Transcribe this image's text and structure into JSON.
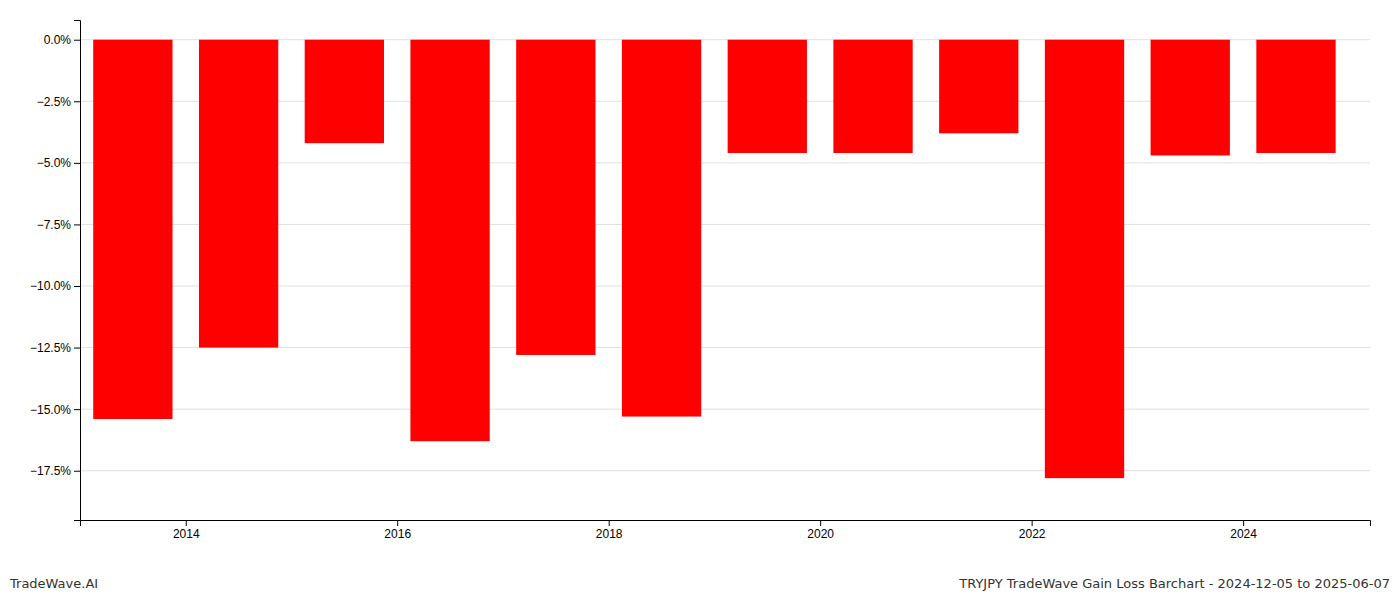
{
  "chart_data": {
    "type": "bar",
    "x": [
      2013.5,
      2014.5,
      2015.5,
      2016.5,
      2017.5,
      2018.5,
      2019.5,
      2020.5,
      2021.5,
      2022.5,
      2023.5,
      2024.5
    ],
    "values": [
      -0.154,
      -0.125,
      -0.042,
      -0.163,
      -0.128,
      -0.153,
      -0.046,
      -0.046,
      -0.038,
      -0.178,
      -0.047,
      -0.046
    ],
    "color": "#ff0000",
    "ylim": [
      -0.195,
      0.008
    ],
    "yticks": [
      {
        "value": 0.0,
        "label": "0.0%"
      },
      {
        "value": -0.025,
        "label": "−2.5%"
      },
      {
        "value": -0.05,
        "label": "−5.0%"
      },
      {
        "value": -0.075,
        "label": "−7.5%"
      },
      {
        "value": -0.1,
        "label": "−10.0%"
      },
      {
        "value": -0.125,
        "label": "−12.5%"
      },
      {
        "value": -0.15,
        "label": "−15.0%"
      },
      {
        "value": -0.175,
        "label": "−17.5%"
      }
    ],
    "xlim": [
      2013.0,
      2025.2
    ],
    "xticks": [
      2014,
      2016,
      2018,
      2020,
      2022,
      2024
    ],
    "grid": true,
    "annotations": [
      "TradeWave.AI",
      "TRYJPY TradeWave Gain Loss Barchart - 2024-12-05 to 2025-06-07"
    ]
  }
}
